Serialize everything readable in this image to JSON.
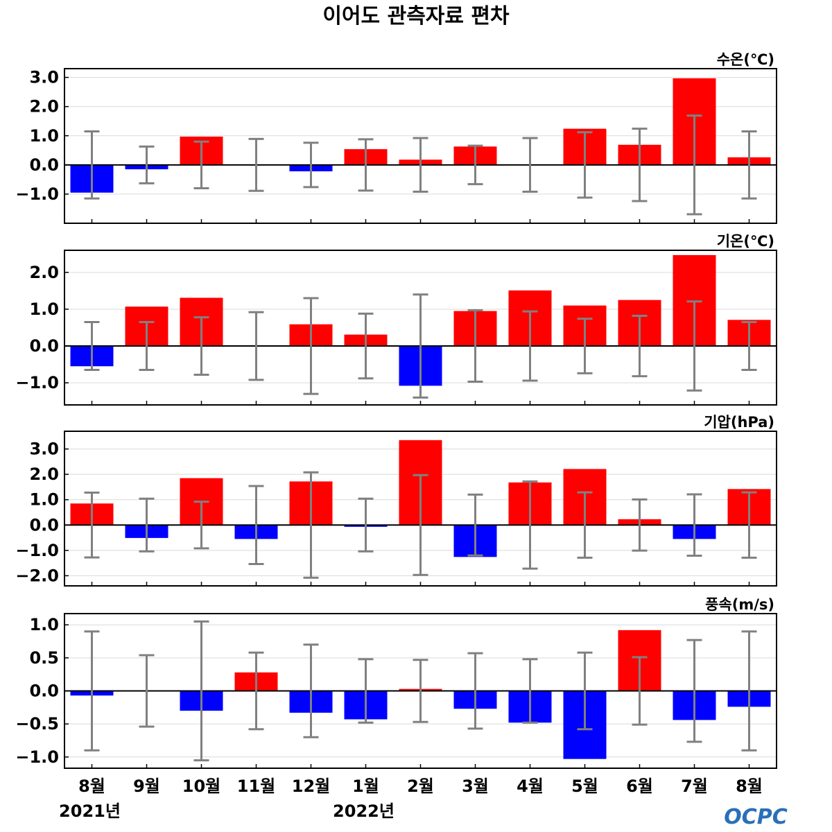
{
  "chart_data": {
    "type": "bar",
    "title": "이어도 관측자료 편차",
    "categories": [
      "8월",
      "9월",
      "10월",
      "11월",
      "12월",
      "1월",
      "2월",
      "3월",
      "4월",
      "5월",
      "6월",
      "7월",
      "8월"
    ],
    "year_labels": [
      {
        "label": "2021년",
        "category_index": 0
      },
      {
        "label": "2022년",
        "category_index": 5
      }
    ],
    "logo": "OCPC",
    "colors": {
      "positive": "#ff0000",
      "negative": "#0000ff",
      "error_bar": "#808080",
      "zero_line": "#000000",
      "grid": "#d9d9d9"
    },
    "panels": [
      {
        "name": "water-temp",
        "unit_label": "수온(℃)",
        "ylim": [
          -2.0,
          3.3
        ],
        "yticks": [
          3.0,
          2.0,
          1.0,
          0.0,
          -1.0
        ],
        "ytick_labels": [
          "3.0",
          "2.0",
          "1.0",
          "0.0",
          "−1.0"
        ],
        "values": [
          -0.95,
          -0.15,
          0.97,
          0.0,
          -0.22,
          0.54,
          0.18,
          0.63,
          0.0,
          1.24,
          0.69,
          2.97,
          0.26
        ],
        "error": [
          1.15,
          0.63,
          0.8,
          0.89,
          0.76,
          0.88,
          0.92,
          0.66,
          0.92,
          1.12,
          1.24,
          1.69,
          1.15
        ]
      },
      {
        "name": "air-temp",
        "unit_label": "기온(℃)",
        "ylim": [
          -1.6,
          2.6
        ],
        "yticks": [
          2.0,
          1.0,
          0.0,
          -1.0
        ],
        "ytick_labels": [
          "2.0",
          "1.0",
          "0.0",
          "−1.0"
        ],
        "values": [
          -0.55,
          1.07,
          1.31,
          0.0,
          0.59,
          0.31,
          -1.08,
          0.95,
          1.51,
          1.1,
          1.25,
          2.47,
          0.71
        ],
        "error": [
          0.65,
          0.65,
          0.78,
          0.92,
          1.3,
          0.88,
          1.4,
          0.97,
          0.94,
          0.74,
          0.82,
          1.21,
          0.65
        ]
      },
      {
        "name": "air-pressure",
        "unit_label": "기압(hPa)",
        "ylim": [
          -2.4,
          3.7
        ],
        "yticks": [
          3.0,
          2.0,
          1.0,
          0.0,
          -1.0,
          -2.0
        ],
        "ytick_labels": [
          "3.0",
          "2.0",
          "1.0",
          "0.0",
          "−1.0",
          "−2.0"
        ],
        "values": [
          0.85,
          -0.51,
          1.85,
          -0.55,
          1.72,
          -0.07,
          3.35,
          -1.26,
          1.68,
          2.21,
          0.23,
          -0.55,
          1.42
        ],
        "error": [
          1.28,
          1.04,
          0.92,
          1.54,
          2.08,
          1.04,
          1.97,
          1.2,
          1.72,
          1.29,
          1.01,
          1.21,
          1.29
        ]
      },
      {
        "name": "wind-speed",
        "unit_label": "풍속(m/s)",
        "ylim": [
          -1.17,
          1.17
        ],
        "yticks": [
          1.0,
          0.5,
          0.0,
          -0.5,
          -1.0
        ],
        "ytick_labels": [
          "1.0",
          "0.5",
          "0.0",
          "−0.5",
          "−1.0"
        ],
        "values": [
          -0.07,
          -0.01,
          -0.3,
          0.28,
          -0.33,
          -0.43,
          0.03,
          -0.27,
          -0.48,
          -1.03,
          0.92,
          -0.44,
          -0.24
        ],
        "error": [
          0.9,
          0.54,
          1.05,
          0.58,
          0.7,
          0.48,
          0.47,
          0.57,
          0.48,
          0.58,
          0.51,
          0.77,
          0.9
        ]
      }
    ]
  }
}
